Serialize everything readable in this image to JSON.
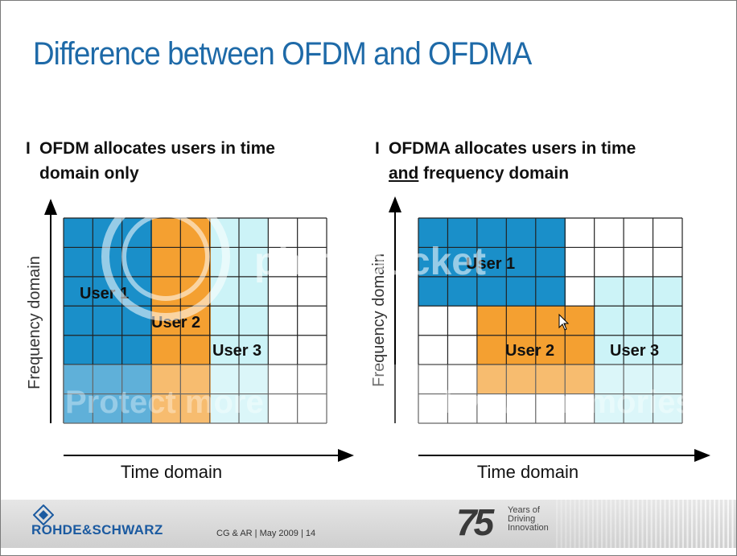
{
  "slide": {
    "title": "Difference between OFDM and OFDMA",
    "left": {
      "bullet_mark": "I",
      "line1": "OFDM allocates users in time",
      "line2": "domain only",
      "y_axis_label": "Frequency domain",
      "x_axis_label": "Time domain",
      "users": [
        {
          "label": "User 1"
        },
        {
          "label": "User 2"
        },
        {
          "label": "User 3"
        }
      ]
    },
    "right": {
      "bullet_mark": "I",
      "line1": "OFDMA allocates users in time",
      "line2_underlined": "and",
      "line2_rest": " frequency domain",
      "y_axis_label": "Frequency domain",
      "x_axis_label": "Time domain",
      "users": [
        {
          "label": "User 1"
        },
        {
          "label": "User 2"
        },
        {
          "label": "User 3"
        }
      ]
    },
    "footer": {
      "company": "ROHDE&SCHWARZ",
      "note": "CG & AR | May 2009  |  14",
      "anniversary_number": "75",
      "anniversary_lines": [
        "Years of",
        "Driving",
        "Innovation"
      ]
    },
    "watermark": {
      "brand": "photobucket",
      "left_text": "Protect more",
      "right_text": "of your memories for less"
    },
    "colors": {
      "title": "#1e6aa8",
      "user1": "#1a8fc9",
      "user2": "#f4a031",
      "user3": "#ccf3f7",
      "grid": "#222222",
      "brand_blue": "#1b5aa0"
    }
  }
}
